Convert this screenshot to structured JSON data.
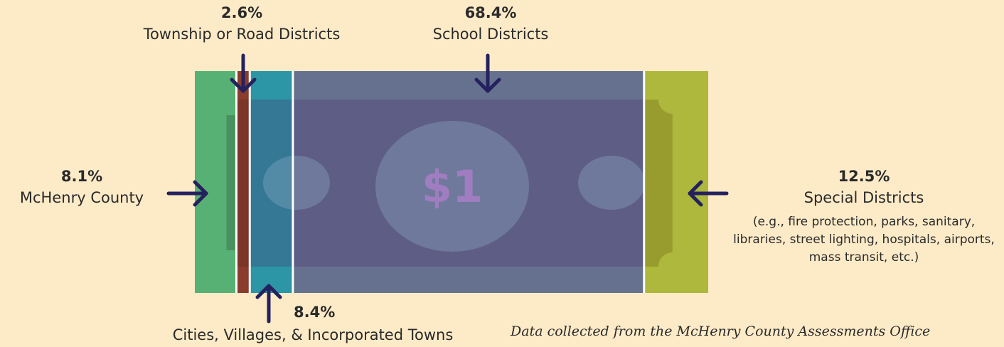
{
  "chart_data": {
    "type": "bar",
    "categories": [
      "McHenry County",
      "Township or Road Districts",
      "Cities, Villages, & Incorporated Towns",
      "School Districts",
      "Special Districts"
    ],
    "values": [
      8.1,
      2.6,
      8.4,
      68.4,
      12.5
    ],
    "value_labels": [
      "8.1%",
      "2.6%",
      "8.4%",
      "68.4%",
      "12.5%"
    ],
    "colors": [
      "#58b174",
      "#8a3d2c",
      "#2c96a6",
      "#66718f",
      "#adb83c"
    ],
    "center_label": "$1",
    "annotation": "(e.g., fire protection, parks, sanitary, libraries, street lighting, hospitals, airports, mass transit, etc.)",
    "source": "Data collected from the McHenry County Assessments Office"
  }
}
